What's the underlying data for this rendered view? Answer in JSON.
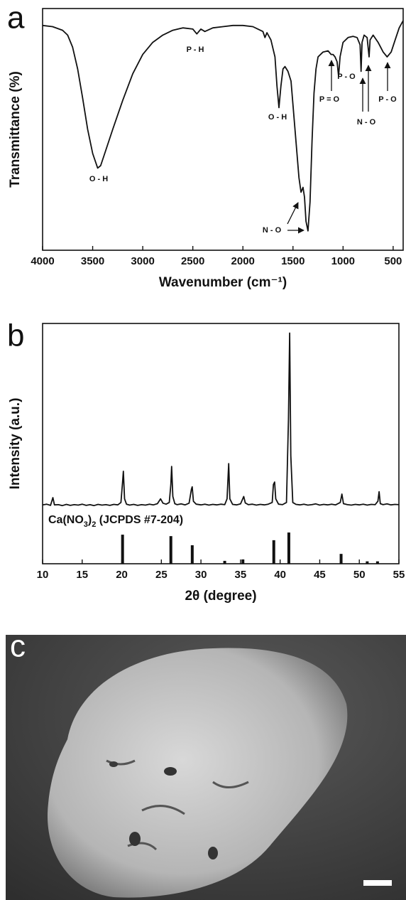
{
  "chart_data": [
    {
      "type": "line",
      "panel_label": "a",
      "x_label": "Wavenumber (cm⁻¹)",
      "y_label": "Transmittance (%)",
      "xlim": [
        4000,
        400
      ],
      "xticks": [
        4000,
        3500,
        3000,
        2500,
        2000,
        1500,
        1000,
        500
      ],
      "ylim": [
        0,
        100
      ],
      "series": [
        {
          "color": "#111111",
          "x": [
            4000,
            3900,
            3800,
            3750,
            3700,
            3650,
            3600,
            3550,
            3500,
            3450,
            3420,
            3380,
            3300,
            3200,
            3100,
            3000,
            2900,
            2800,
            2700,
            2600,
            2500,
            2460,
            2420,
            2380,
            2300,
            2200,
            2100,
            2000,
            1900,
            1850,
            1800,
            1780,
            1760,
            1720,
            1680,
            1660,
            1640,
            1620,
            1600,
            1580,
            1550,
            1520,
            1500,
            1470,
            1440,
            1420,
            1400,
            1385,
            1370,
            1350,
            1330,
            1310,
            1290,
            1270,
            1250,
            1200,
            1150,
            1120,
            1100,
            1080,
            1060,
            1045,
            1030,
            1000,
            950,
            900,
            860,
            830,
            820,
            810,
            790,
            760,
            740,
            730,
            700,
            650,
            600,
            560,
            520,
            480,
            440,
            400
          ],
          "values": [
            93,
            92.5,
            91,
            89,
            84,
            75,
            63,
            50,
            40,
            34,
            35,
            40,
            50,
            62,
            73,
            81,
            86,
            89,
            91,
            92,
            91.5,
            89.5,
            91.5,
            90.5,
            92,
            92.5,
            93,
            93,
            92.5,
            91.5,
            90.5,
            88,
            90,
            87,
            80,
            68,
            59,
            68,
            75,
            76,
            74,
            70,
            60,
            45,
            30,
            24,
            26,
            22,
            12,
            8,
            20,
            45,
            65,
            75,
            80,
            82,
            82.5,
            81,
            81,
            80,
            78,
            72,
            80,
            86,
            88,
            88.5,
            88,
            85,
            74,
            86,
            89,
            88,
            80,
            87,
            89,
            86,
            82,
            80,
            82,
            87,
            92,
            95
          ]
        }
      ],
      "annotations": [
        "O - H",
        "P - H",
        "O - H",
        "P = O",
        "P - O",
        "N - O",
        "P - O",
        "N - O"
      ]
    },
    {
      "type": "line",
      "panel_label": "b",
      "x_label": "2θ (degree)",
      "y_label": "Intensity (a.u.)",
      "xlim": [
        10,
        55
      ],
      "xticks": [
        10,
        15,
        20,
        25,
        30,
        35,
        40,
        45,
        50,
        55
      ],
      "ylim": [
        0,
        100
      ],
      "series": [
        {
          "color": "#111111",
          "x": [
            10,
            10.5,
            11,
            11.3,
            11.5,
            12,
            12.5,
            13,
            13.5,
            14,
            14.5,
            15,
            15.5,
            16,
            16.5,
            17,
            17.5,
            18,
            18.5,
            19,
            19.5,
            19.9,
            20.1,
            20.2,
            20.35,
            20.6,
            21,
            21.5,
            22,
            22.5,
            23,
            23.5,
            24,
            24.5,
            24.9,
            25.2,
            25.6,
            26,
            26.2,
            26.3,
            26.45,
            26.7,
            27,
            27.5,
            28,
            28.5,
            28.8,
            28.9,
            29.05,
            29.4,
            30,
            30.5,
            31,
            31.5,
            32,
            32.5,
            33,
            33.3,
            33.5,
            33.65,
            34,
            34.5,
            35,
            35.4,
            35.6,
            36,
            36.5,
            37,
            37.5,
            38,
            38.5,
            39,
            39.15,
            39.3,
            39.45,
            39.8,
            40.3,
            40.8,
            41.05,
            41.2,
            41.35,
            41.6,
            42,
            42.5,
            43,
            43.5,
            44,
            44.5,
            45,
            45.5,
            46,
            46.5,
            47,
            47.6,
            47.8,
            48,
            48.5,
            49,
            49.5,
            50,
            50.5,
            51,
            51.5,
            52,
            52.35,
            52.5,
            52.65,
            53,
            53.5,
            54,
            54.5,
            55
          ],
          "values": [
            24.5,
            24.8,
            24.3,
            27.5,
            24.5,
            24.6,
            24.2,
            24.7,
            24.3,
            24.6,
            24.4,
            24.8,
            24.3,
            24.6,
            24.2,
            24.7,
            24.4,
            24.6,
            24.3,
            24.7,
            24.5,
            25.5,
            34,
            38.5,
            27,
            24.8,
            24.4,
            24.7,
            24.3,
            24.6,
            24.4,
            24.8,
            24.5,
            25,
            27,
            25.2,
            24.8,
            25.5,
            33,
            40.5,
            28,
            25,
            24.6,
            24.9,
            24.5,
            25.2,
            31,
            32,
            26,
            24.8,
            24.5,
            24.8,
            24.4,
            24.7,
            24.5,
            24.8,
            24.6,
            27,
            41.7,
            27,
            24.7,
            24.5,
            24.9,
            28,
            25.3,
            24.6,
            24.8,
            24.4,
            24.7,
            24.5,
            24.8,
            25.5,
            33,
            34,
            27,
            24.8,
            24.6,
            25.5,
            60,
            96,
            45,
            25.5,
            24.7,
            24.5,
            24.8,
            24.4,
            24.6,
            24.9,
            24.4,
            24.7,
            24.5,
            24.8,
            24.5,
            25.5,
            29,
            25,
            24.6,
            24.4,
            24.7,
            24.5,
            24.8,
            24.4,
            24.7,
            24.6,
            26,
            30,
            25,
            24.6,
            24.9,
            24.5,
            24.7,
            24.6
          ]
        },
        {
          "type": "bar",
          "color": "#111111",
          "name": "Ca(NO3)2 (JCPDS #7-204)",
          "x": [
            20.1,
            26.2,
            28.9,
            33.0,
            35.3,
            39.2,
            41.1,
            47.7,
            51.0,
            52.3
          ],
          "values": [
            12.1,
            11.5,
            7.7,
            1.2,
            1.8,
            9.8,
            13,
            4.1,
            1,
            1
          ]
        }
      ]
    }
  ],
  "image": {
    "panel_label": "c"
  }
}
